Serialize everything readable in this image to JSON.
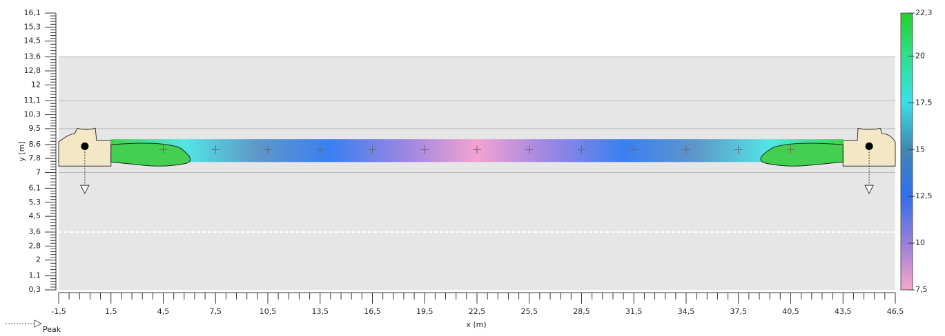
{
  "chart_data": {
    "type": "heatmap",
    "x_label": "x (m)",
    "y_label": "y [m]",
    "legend": "Peak",
    "xlim": [
      -1.5,
      46.5
    ],
    "xticks": [
      {
        "value": -1.5,
        "label": "-1,5"
      },
      {
        "value": 1.5,
        "label": "1,5"
      },
      {
        "value": 4.5,
        "label": "4,5"
      },
      {
        "value": 7.5,
        "label": "7,5"
      },
      {
        "value": 10.5,
        "label": "10,5"
      },
      {
        "value": 13.5,
        "label": "13,5"
      },
      {
        "value": 16.5,
        "label": "16,5"
      },
      {
        "value": 19.5,
        "label": "19,5"
      },
      {
        "value": 22.5,
        "label": "22,5"
      },
      {
        "value": 25.5,
        "label": "25,5"
      },
      {
        "value": 28.5,
        "label": "28,5"
      },
      {
        "value": 31.5,
        "label": "31,5"
      },
      {
        "value": 34.5,
        "label": "34,5"
      },
      {
        "value": 37.5,
        "label": "37,5"
      },
      {
        "value": 40.5,
        "label": "40,5"
      },
      {
        "value": 43.5,
        "label": "43,5"
      },
      {
        "value": 46.5,
        "label": "46,5"
      }
    ],
    "ylim": [
      0.3,
      16.1
    ],
    "yticks": [
      {
        "value": 0.3,
        "label": "0,3"
      },
      {
        "value": 1.1,
        "label": "1,1"
      },
      2,
      {
        "value": 2.8,
        "label": "2,8"
      },
      {
        "value": 3.6,
        "label": "3,6"
      },
      {
        "value": 4.5,
        "label": "4,5"
      },
      {
        "value": 5.3,
        "label": "5,3"
      },
      {
        "value": 6.1,
        "label": "6,1"
      },
      7,
      {
        "value": 7.8,
        "label": "7,8"
      },
      {
        "value": 8.6,
        "label": "8,6"
      },
      {
        "value": 9.5,
        "label": "9,5"
      },
      {
        "value": 10.3,
        "label": "10,3"
      },
      {
        "value": 11.1,
        "label": "11,1"
      },
      12,
      {
        "value": 12.8,
        "label": "12,8"
      },
      {
        "value": 13.6,
        "label": "13,6"
      },
      {
        "value": 14.5,
        "label": "14,5"
      },
      {
        "value": 15.3,
        "label": "15,3"
      },
      {
        "value": 16.1,
        "label": "16,1"
      }
    ],
    "hlines": [
      13.6,
      11.1,
      9.5,
      7
    ],
    "dashed_line": 3.6,
    "beam": {
      "x": [
        1.5,
        43.5
      ],
      "y": [
        7.6,
        8.9
      ]
    },
    "nodes": {
      "x": [
        4.5,
        7.5,
        10.5,
        13.5,
        16.5,
        19.5,
        22.5,
        25.5,
        28.5,
        31.5,
        34.5,
        37.5,
        40.5
      ],
      "y": [
        8.3,
        8.3,
        8.3,
        8.3,
        8.3,
        8.3,
        8.3,
        8.3,
        8.3,
        8.3,
        8.3,
        8.3,
        8.3
      ]
    },
    "supports": {
      "x": [
        0,
        45
      ],
      "y": [
        8.5,
        8.5
      ],
      "arrow_y": [
        5.8,
        5.8
      ]
    },
    "colorbar": {
      "lim": [
        7.5,
        22.3
      ],
      "ticks": [
        {
          "value": 7.5,
          "label": "7,5"
        },
        10,
        {
          "value": 12.5,
          "label": "12,5"
        },
        15,
        {
          "value": 17.5,
          "label": "17,5"
        },
        20,
        {
          "value": 22.3,
          "label": "22,3"
        }
      ]
    }
  }
}
